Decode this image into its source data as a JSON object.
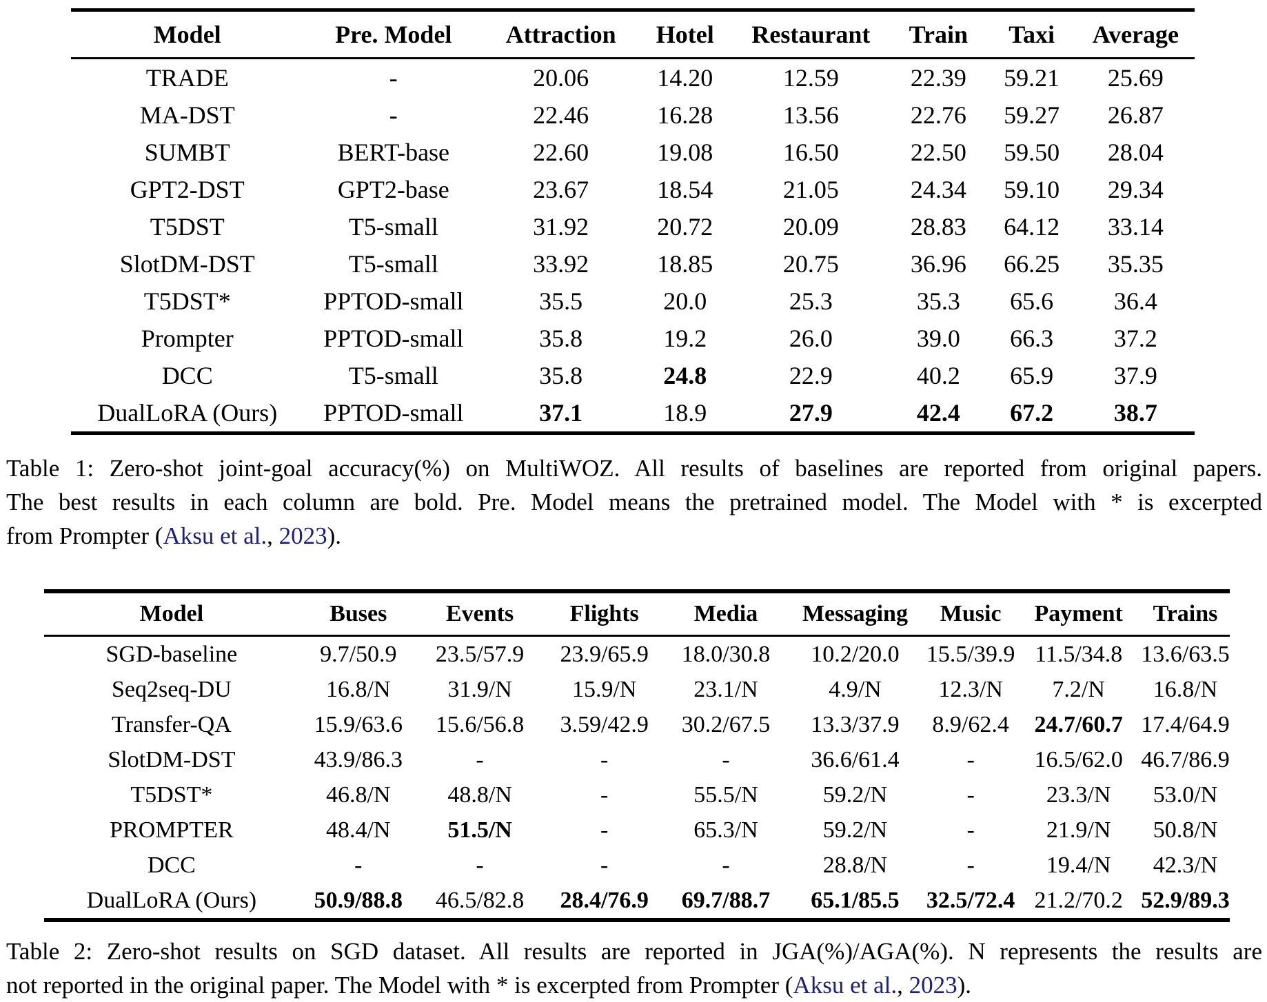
{
  "page": {
    "background": "#ffffff",
    "text_color": "#000000",
    "link_color": "#1b2080"
  },
  "table1": {
    "headers": [
      "Model",
      "Pre. Model",
      "Attraction",
      "Hotel",
      "Restaurant",
      "Train",
      "Taxi",
      "Average"
    ],
    "col_widths": [
      "20.7%",
      "16%",
      "13.8%",
      "8.3%",
      "14.1%",
      "8.6%",
      "8%",
      "10.5%"
    ],
    "rows": [
      [
        "TRADE",
        "-",
        "20.06",
        "14.20",
        "12.59",
        "22.39",
        "59.21",
        "25.69"
      ],
      [
        "MA-DST",
        "-",
        "22.46",
        "16.28",
        "13.56",
        "22.76",
        "59.27",
        "26.87"
      ],
      [
        "SUMBT",
        "BERT-base",
        "22.60",
        "19.08",
        "16.50",
        "22.50",
        "59.50",
        "28.04"
      ],
      [
        "GPT2-DST",
        "GPT2-base",
        "23.67",
        "18.54",
        "21.05",
        "24.34",
        "59.10",
        "29.34"
      ],
      [
        "T5DST",
        "T5-small",
        "31.92",
        "20.72",
        "20.09",
        "28.83",
        "64.12",
        "33.14"
      ],
      [
        "SlotDM-DST",
        "T5-small",
        "33.92",
        "18.85",
        "20.75",
        "36.96",
        "66.25",
        "35.35"
      ],
      [
        "T5DST*",
        "PPTOD-small",
        "35.5",
        "20.0",
        "25.3",
        "35.3",
        "65.6",
        "36.4"
      ],
      [
        "Prompter",
        "PPTOD-small",
        "35.8",
        "19.2",
        "26.0",
        "39.0",
        "66.3",
        "37.2"
      ],
      [
        "DCC",
        "T5-small",
        "35.8",
        "24.8",
        "22.9",
        "40.2",
        "65.9",
        "37.9"
      ],
      [
        "DualLoRA (Ours)",
        "PPTOD-small",
        "37.1",
        "18.9",
        "27.9",
        "42.4",
        "67.2",
        "38.7"
      ]
    ],
    "bold_cells": [
      [
        8,
        3
      ],
      [
        9,
        2
      ],
      [
        9,
        4
      ],
      [
        9,
        5
      ],
      [
        9,
        6
      ],
      [
        9,
        7
      ]
    ],
    "caption_lines": [
      {
        "justify": true,
        "segments": [
          {
            "t": "Table 1: Zero-shot joint-goal accuracy(%) on MultiWOZ. All results of baselines are reported from original papers.",
            "link": false
          }
        ]
      },
      {
        "justify": true,
        "segments": [
          {
            "t": "The best results in each column are bold. Pre. Model means the pretrained model. The Model with * is excerpted",
            "link": false
          }
        ]
      },
      {
        "justify": false,
        "segments": [
          {
            "t": "from Prompter (",
            "link": false
          },
          {
            "t": "Aksu et al.",
            "link": true
          },
          {
            "t": ", ",
            "link": false
          },
          {
            "t": "2023",
            "link": true
          },
          {
            "t": ").",
            "link": false
          }
        ]
      }
    ]
  },
  "table2": {
    "headers": [
      "Model",
      "Buses",
      "Events",
      "Flights",
      "Media",
      "Messaging",
      "Music",
      "Payment",
      "Trains"
    ],
    "col_widths": [
      "21.5%",
      "10%",
      "10.5%",
      "10.5%",
      "10%",
      "11.8%",
      "7.7%",
      "10.5%",
      "7.5%"
    ],
    "rows": [
      [
        "SGD-baseline",
        "9.7/50.9",
        "23.5/57.9",
        "23.9/65.9",
        "18.0/30.8",
        "10.2/20.0",
        "15.5/39.9",
        "11.5/34.8",
        "13.6/63.5"
      ],
      [
        "Seq2seq-DU",
        "16.8/N",
        "31.9/N",
        "15.9/N",
        "23.1/N",
        "4.9/N",
        "12.3/N",
        "7.2/N",
        "16.8/N"
      ],
      [
        "Transfer-QA",
        "15.9/63.6",
        "15.6/56.8",
        "3.59/42.9",
        "30.2/67.5",
        "13.3/37.9",
        "8.9/62.4",
        "24.7/60.7",
        "17.4/64.9"
      ],
      [
        "SlotDM-DST",
        "43.9/86.3",
        "-",
        "-",
        "-",
        "36.6/61.4",
        "-",
        "16.5/62.0",
        "46.7/86.9"
      ],
      [
        "T5DST*",
        "46.8/N",
        "48.8/N",
        "-",
        "55.5/N",
        "59.2/N",
        "-",
        "23.3/N",
        "53.0/N"
      ],
      [
        "PROMPTER",
        "48.4/N",
        "51.5/N",
        "-",
        "65.3/N",
        "59.2/N",
        "-",
        "21.9/N",
        "50.8/N"
      ],
      [
        "DCC",
        "-",
        "-",
        "-",
        "-",
        "28.8/N",
        "-",
        "19.4/N",
        "42.3/N"
      ],
      [
        "DualLoRA (Ours)",
        "50.9/88.8",
        "46.5/82.8",
        "28.4/76.9",
        "69.7/88.7",
        "65.1/85.5",
        "32.5/72.4",
        "21.2/70.2",
        "52.9/89.3"
      ]
    ],
    "bold_cells": [
      [
        2,
        7
      ],
      [
        5,
        2
      ],
      [
        7,
        1
      ],
      [
        7,
        3
      ],
      [
        7,
        4
      ],
      [
        7,
        5
      ],
      [
        7,
        6
      ],
      [
        7,
        8
      ]
    ],
    "caption_lines": [
      {
        "justify": true,
        "segments": [
          {
            "t": "Table 2: Zero-shot results on SGD dataset. All results are reported in JGA(%)/AGA(%). N represents the results are",
            "link": false
          }
        ]
      },
      {
        "justify": false,
        "segments": [
          {
            "t": "not reported in the original paper. The Model with * is excerpted from Prompter (",
            "link": false
          },
          {
            "t": "Aksu et al.",
            "link": true
          },
          {
            "t": ", ",
            "link": false
          },
          {
            "t": "2023",
            "link": true
          },
          {
            "t": ").",
            "link": false
          }
        ]
      }
    ]
  }
}
